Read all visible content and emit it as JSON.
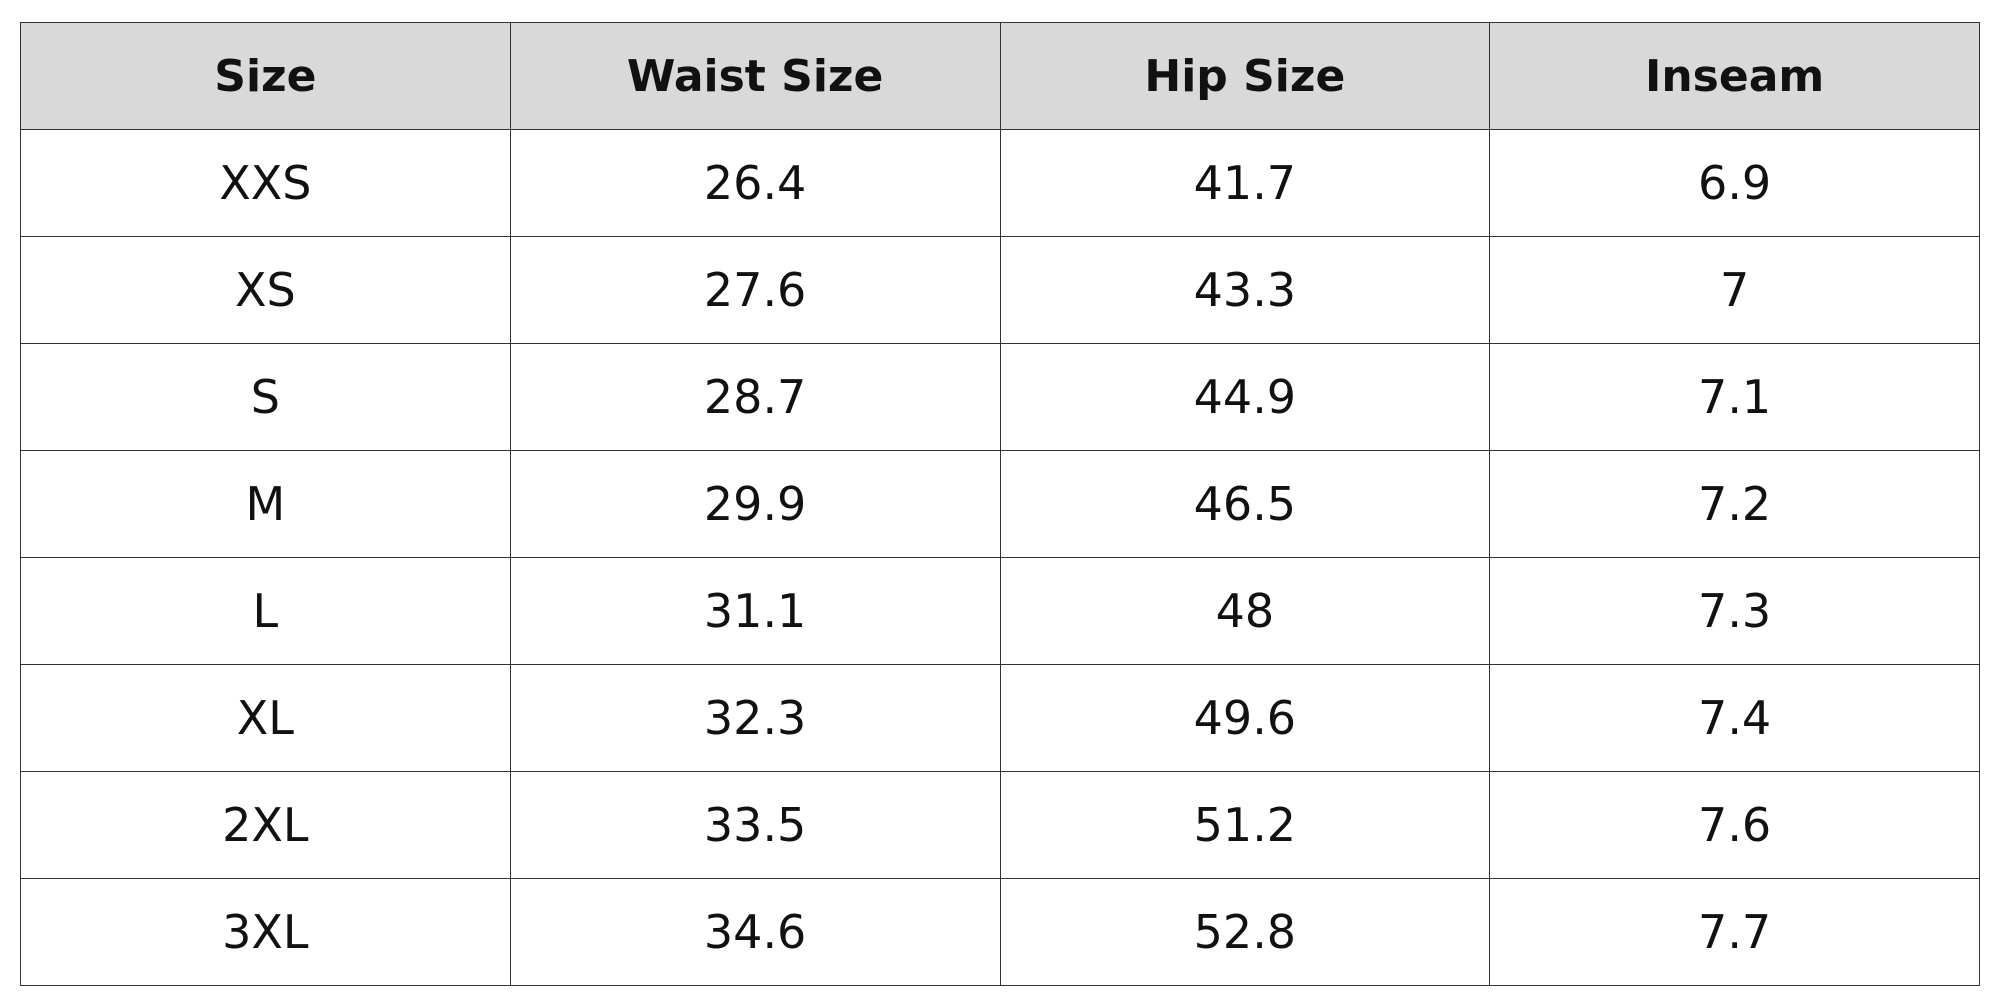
{
  "table": {
    "header": [
      "Size",
      "Waist Size",
      "Hip Size",
      "Inseam"
    ],
    "rows": [
      [
        "XXS",
        "26.4",
        "41.7",
        "6.9"
      ],
      [
        "XS",
        "27.6",
        "43.3",
        "7"
      ],
      [
        "S",
        "28.7",
        "44.9",
        "7.1"
      ],
      [
        "M",
        "29.9",
        "46.5",
        "7.2"
      ],
      [
        "L",
        "31.1",
        "48",
        "7.3"
      ],
      [
        "XL",
        "32.3",
        "49.6",
        "7.4"
      ],
      [
        "2XL",
        "33.5",
        "51.2",
        "7.6"
      ],
      [
        "3XL",
        "34.6",
        "52.8",
        "7.7"
      ]
    ]
  }
}
